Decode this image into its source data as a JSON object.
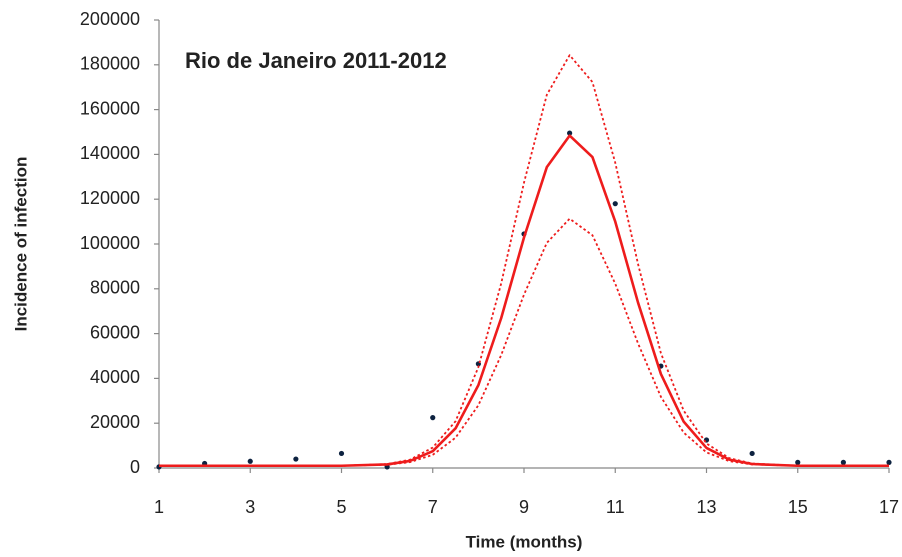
{
  "chart_data": {
    "type": "line",
    "title": "Rio de Janeiro 2011-2012",
    "x_label": "Time (months)",
    "y_label": "Incidence of infection",
    "xlim": [
      1,
      17
    ],
    "xticks": [
      1,
      3,
      5,
      7,
      9,
      11,
      13,
      15,
      17
    ],
    "ylim": [
      0,
      200000
    ],
    "yticks": [
      0,
      20000,
      40000,
      60000,
      80000,
      100000,
      120000,
      140000,
      160000,
      180000,
      200000
    ],
    "grid": false,
    "series": [
      {
        "style": "markers",
        "color": "#0d2240",
        "x": [
          1,
          2,
          3,
          4,
          5,
          6,
          7,
          8,
          9,
          10,
          11,
          12,
          13,
          14,
          15,
          16,
          17
        ],
        "values": [
          500,
          2000,
          3000,
          4000,
          6500,
          500,
          22500,
          46500,
          104500,
          149500,
          118000,
          45500,
          12500,
          6500,
          2500,
          2500,
          2500
        ]
      },
      {
        "style": "solid",
        "color": "#ee1c1c",
        "x": [
          1,
          2,
          3,
          4,
          5,
          6,
          6.5,
          7,
          7.5,
          8,
          8.5,
          9,
          9.5,
          10,
          10.5,
          11,
          11.5,
          12,
          12.5,
          13,
          13.5,
          14,
          15,
          16,
          17
        ],
        "values": [
          1000,
          1000,
          1000,
          1000,
          1000,
          1600,
          3150,
          7500,
          17700,
          37000,
          66900,
          102900,
          134300,
          148400,
          138800,
          110000,
          73800,
          42000,
          20700,
          8950,
          3730,
          1780,
          1000,
          1000,
          1000
        ]
      },
      {
        "style": "dotted",
        "color": "#ee1c1c",
        "x": [
          1,
          2,
          3,
          4,
          5,
          6,
          6.5,
          7,
          7.5,
          8,
          8.5,
          9,
          9.5,
          10,
          10.5,
          11,
          11.5,
          12,
          12.5,
          13,
          13.5,
          14,
          15,
          16,
          17
        ],
        "values": [
          1000,
          1000,
          1000,
          1000,
          1000,
          1750,
          3690,
          9130,
          20880,
          45000,
          82400,
          127400,
          166600,
          184300,
          172300,
          136300,
          91000,
          51300,
          25600,
          10940,
          4410,
          1980,
          1000,
          1000,
          1000
        ]
      },
      {
        "style": "dotted",
        "color": "#ee1c1c",
        "x": [
          1,
          2,
          3,
          4,
          5,
          6,
          6.5,
          7,
          7.5,
          8,
          8.5,
          9,
          9.5,
          10,
          10.5,
          11,
          11.5,
          12,
          12.5,
          13,
          13.5,
          14,
          15,
          16,
          17
        ],
        "values": [
          1000,
          1000,
          1000,
          1000,
          1000,
          1450,
          2610,
          5880,
          13530,
          28000,
          50400,
          77400,
          100500,
          111300,
          103900,
          82300,
          55600,
          31800,
          15800,
          6960,
          3050,
          1590,
          1000,
          1000,
          1000
        ]
      }
    ]
  }
}
